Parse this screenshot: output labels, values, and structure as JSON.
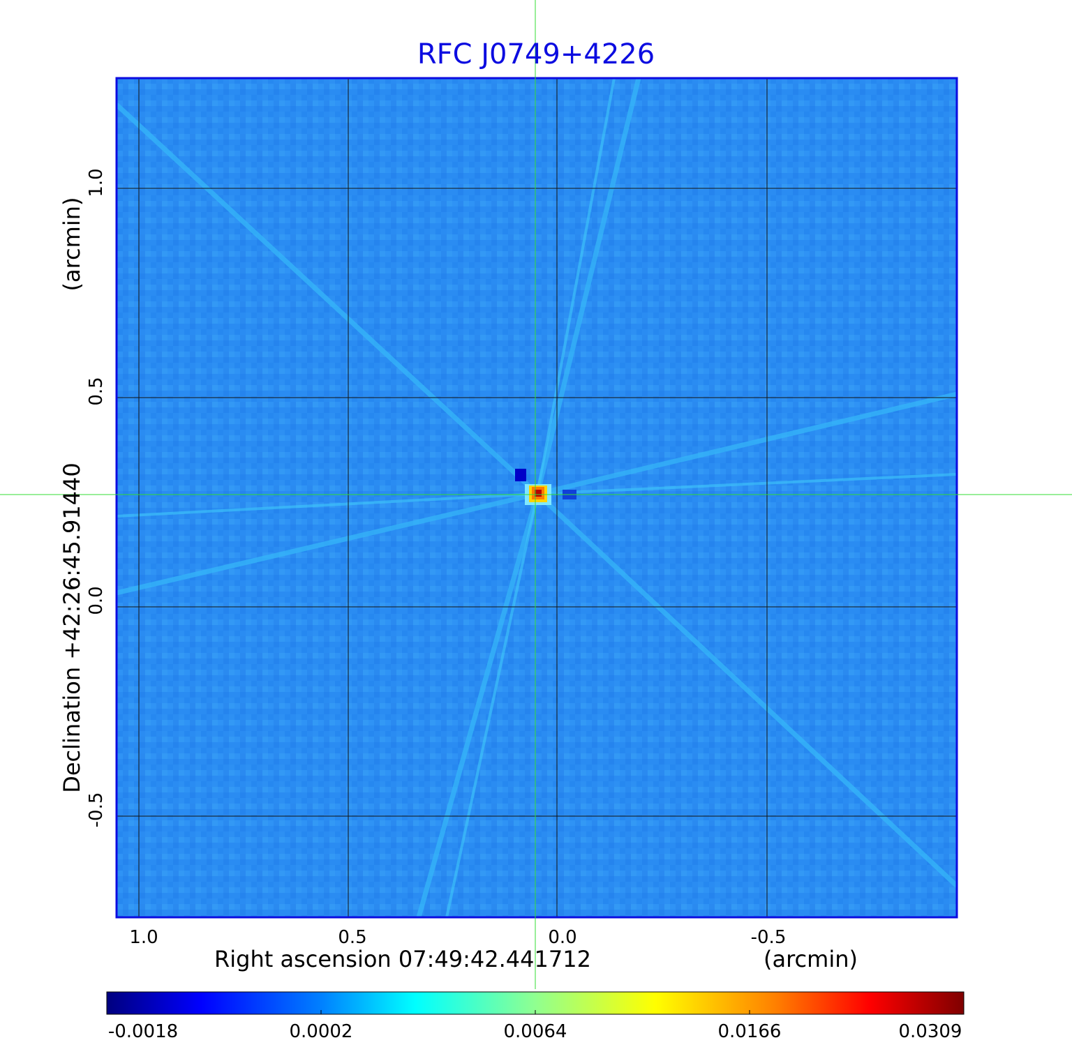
{
  "image": {
    "title": "RFC J0749+4226",
    "title_color": "#0c0ce0",
    "frame_color": "#0c0ce0",
    "crosshair_color": "#33dd33",
    "grid_color": "#111111",
    "x_axis": {
      "label": "Right ascension  07:49:42.441712",
      "unit": "(arcmin)",
      "ticks": [
        "1.0",
        "0.5",
        "0.0",
        "-0.5"
      ]
    },
    "y_axis": {
      "label": "Declination  +42:26:45.91440",
      "unit": "(arcmin)",
      "ticks": [
        "1.0",
        "0.5",
        "0.0",
        "-0.5"
      ]
    },
    "colorbar": {
      "ticks": [
        "-0.0018",
        "0.0002",
        "0.0064",
        "0.0166",
        "0.0309"
      ],
      "colormap": "jet"
    }
  }
}
